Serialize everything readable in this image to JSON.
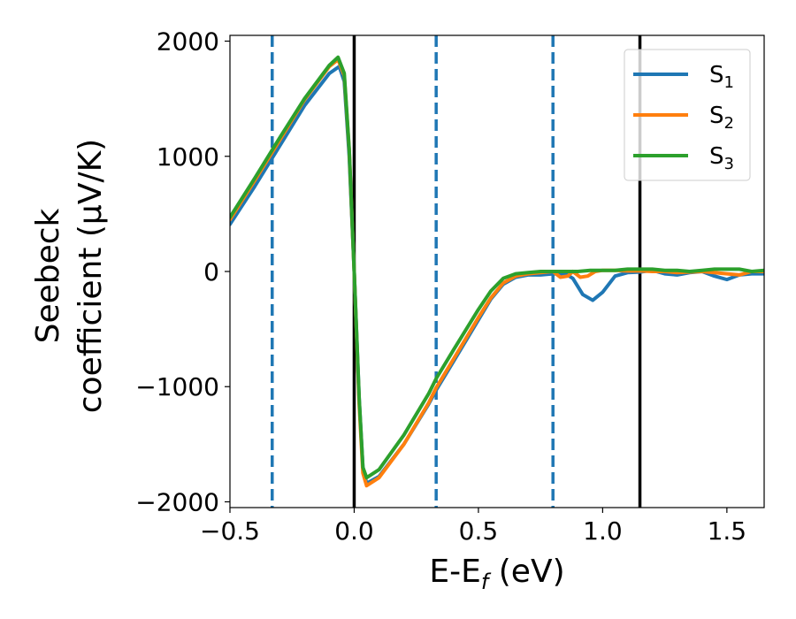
{
  "chart_data": {
    "type": "line",
    "title": "",
    "xlabel": {
      "main": "E-E",
      "sub": "f",
      "tail": " (eV)"
    },
    "ylabel": {
      "line1": "Seebeck",
      "line2": "coefficient  (μV/K)"
    },
    "xlim": [
      -0.5,
      1.65
    ],
    "ylim": [
      -2050,
      2050
    ],
    "x_ticks": [
      -0.5,
      0.0,
      0.5,
      1.0,
      1.5
    ],
    "x_tick_labels": [
      "−0.5",
      "0.0",
      "0.5",
      "1.0",
      "1.5"
    ],
    "y_ticks": [
      -2000,
      -1000,
      0,
      1000,
      2000
    ],
    "y_tick_labels": [
      "−2000",
      "−1000",
      "0",
      "1000",
      "2000"
    ],
    "grid": false,
    "legend": {
      "placement": "top-right",
      "entries": [
        {
          "label": "S",
          "sub": "1"
        },
        {
          "label": "S",
          "sub": "2"
        },
        {
          "label": "S",
          "sub": "3"
        }
      ]
    },
    "vlines": [
      {
        "x": -0.33,
        "style": "dashed",
        "color": "#1f77b4"
      },
      {
        "x": 0.0,
        "style": "solid",
        "color": "#000000"
      },
      {
        "x": 0.33,
        "style": "dashed",
        "color": "#1f77b4"
      },
      {
        "x": 0.8,
        "style": "dashed",
        "color": "#1f77b4"
      },
      {
        "x": 1.15,
        "style": "solid",
        "color": "#000000"
      }
    ],
    "series": [
      {
        "name": "S1",
        "color": "#1f77b4",
        "points": [
          [
            -0.5,
            410
          ],
          [
            -0.4,
            740
          ],
          [
            -0.3,
            1090
          ],
          [
            -0.2,
            1440
          ],
          [
            -0.1,
            1720
          ],
          [
            -0.06,
            1780
          ],
          [
            -0.04,
            1650
          ],
          [
            -0.02,
            1000
          ],
          [
            0.0,
            0
          ],
          [
            0.02,
            -1100
          ],
          [
            0.035,
            -1700
          ],
          [
            0.05,
            -1840
          ],
          [
            0.1,
            -1780
          ],
          [
            0.2,
            -1500
          ],
          [
            0.3,
            -1150
          ],
          [
            0.33,
            -1030
          ],
          [
            0.4,
            -780
          ],
          [
            0.5,
            -420
          ],
          [
            0.55,
            -240
          ],
          [
            0.6,
            -110
          ],
          [
            0.65,
            -50
          ],
          [
            0.7,
            -30
          ],
          [
            0.75,
            -30
          ],
          [
            0.8,
            -20
          ],
          [
            0.85,
            -20
          ],
          [
            0.88,
            -60
          ],
          [
            0.92,
            -200
          ],
          [
            0.96,
            -250
          ],
          [
            1.0,
            -180
          ],
          [
            1.05,
            -40
          ],
          [
            1.1,
            -10
          ],
          [
            1.15,
            -5
          ],
          [
            1.2,
            10
          ],
          [
            1.25,
            -20
          ],
          [
            1.3,
            -30
          ],
          [
            1.35,
            -10
          ],
          [
            1.4,
            0
          ],
          [
            1.45,
            -40
          ],
          [
            1.5,
            -70
          ],
          [
            1.55,
            -30
          ],
          [
            1.6,
            -20
          ],
          [
            1.65,
            -20
          ]
        ]
      },
      {
        "name": "S2",
        "color": "#ff7f0e",
        "points": [
          [
            -0.5,
            450
          ],
          [
            -0.4,
            790
          ],
          [
            -0.3,
            1140
          ],
          [
            -0.2,
            1490
          ],
          [
            -0.1,
            1780
          ],
          [
            -0.065,
            1840
          ],
          [
            -0.04,
            1700
          ],
          [
            -0.02,
            1050
          ],
          [
            0.0,
            0
          ],
          [
            0.02,
            -1150
          ],
          [
            0.035,
            -1750
          ],
          [
            0.05,
            -1860
          ],
          [
            0.1,
            -1790
          ],
          [
            0.2,
            -1500
          ],
          [
            0.3,
            -1140
          ],
          [
            0.33,
            -1010
          ],
          [
            0.4,
            -760
          ],
          [
            0.5,
            -400
          ],
          [
            0.55,
            -230
          ],
          [
            0.6,
            -100
          ],
          [
            0.65,
            -40
          ],
          [
            0.7,
            -20
          ],
          [
            0.75,
            -10
          ],
          [
            0.8,
            0
          ],
          [
            0.83,
            -50
          ],
          [
            0.86,
            -40
          ],
          [
            0.88,
            0
          ],
          [
            0.91,
            -50
          ],
          [
            0.94,
            -40
          ],
          [
            0.97,
            0
          ],
          [
            1.0,
            10
          ],
          [
            1.05,
            10
          ],
          [
            1.1,
            5
          ],
          [
            1.15,
            5
          ],
          [
            1.2,
            0
          ],
          [
            1.25,
            0
          ],
          [
            1.3,
            -10
          ],
          [
            1.35,
            -5
          ],
          [
            1.4,
            0
          ],
          [
            1.45,
            -10
          ],
          [
            1.5,
            -20
          ],
          [
            1.55,
            -30
          ],
          [
            1.6,
            0
          ],
          [
            1.65,
            0
          ]
        ]
      },
      {
        "name": "S3",
        "color": "#2ca02c",
        "points": [
          [
            -0.5,
            470
          ],
          [
            -0.4,
            810
          ],
          [
            -0.3,
            1160
          ],
          [
            -0.2,
            1500
          ],
          [
            -0.1,
            1790
          ],
          [
            -0.065,
            1860
          ],
          [
            -0.04,
            1720
          ],
          [
            -0.02,
            1060
          ],
          [
            0.0,
            0
          ],
          [
            0.02,
            -1100
          ],
          [
            0.035,
            -1700
          ],
          [
            0.05,
            -1790
          ],
          [
            0.1,
            -1720
          ],
          [
            0.2,
            -1420
          ],
          [
            0.3,
            -1060
          ],
          [
            0.33,
            -930
          ],
          [
            0.4,
            -680
          ],
          [
            0.5,
            -330
          ],
          [
            0.55,
            -170
          ],
          [
            0.6,
            -60
          ],
          [
            0.65,
            -20
          ],
          [
            0.7,
            -10
          ],
          [
            0.75,
            0
          ],
          [
            0.8,
            0
          ],
          [
            0.85,
            0
          ],
          [
            0.9,
            0
          ],
          [
            0.95,
            10
          ],
          [
            1.0,
            10
          ],
          [
            1.05,
            10
          ],
          [
            1.1,
            20
          ],
          [
            1.15,
            20
          ],
          [
            1.2,
            20
          ],
          [
            1.25,
            10
          ],
          [
            1.3,
            10
          ],
          [
            1.35,
            0
          ],
          [
            1.4,
            10
          ],
          [
            1.45,
            20
          ],
          [
            1.5,
            20
          ],
          [
            1.55,
            20
          ],
          [
            1.6,
            0
          ],
          [
            1.65,
            10
          ]
        ]
      }
    ]
  }
}
